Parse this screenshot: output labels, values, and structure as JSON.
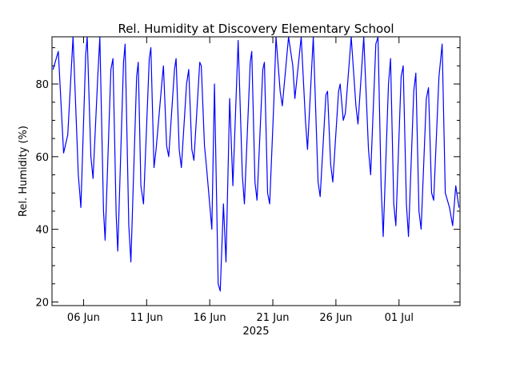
{
  "chart_data": {
    "type": "line",
    "title": "Rel. Humidity at Discovery Elementary School",
    "xlabel": "2025",
    "ylabel": "Rel. Humidity (%)",
    "xlim": [
      "2025-06-03T12:00",
      "2025-07-05T20:00"
    ],
    "ylim": [
      19,
      93
    ],
    "y_ticks": [
      20,
      40,
      60,
      80
    ],
    "x_ticks": [
      {
        "date": "2025-06-06",
        "label": "06 Jun"
      },
      {
        "date": "2025-06-11",
        "label": "11 Jun"
      },
      {
        "date": "2025-06-16",
        "label": "16 Jun"
      },
      {
        "date": "2025-06-21",
        "label": "21 Jun"
      },
      {
        "date": "2025-06-26",
        "label": "26 Jun"
      },
      {
        "date": "2025-07-01",
        "label": "01 Jul"
      }
    ],
    "grid": false,
    "series": [
      {
        "color": "#0000ff",
        "points": [
          [
            "2025-06-03T14:00",
            84
          ],
          [
            "2025-06-04T00:00",
            89
          ],
          [
            "2025-06-04T10:00",
            61
          ],
          [
            "2025-06-04T18:00",
            66
          ],
          [
            "2025-06-05T04:00",
            93
          ],
          [
            "2025-06-05T14:00",
            55
          ],
          [
            "2025-06-05T19:00",
            46
          ],
          [
            "2025-06-06T04:00",
            88
          ],
          [
            "2025-06-06T07:00",
            93
          ],
          [
            "2025-06-06T14:00",
            60
          ],
          [
            "2025-06-06T18:00",
            54
          ],
          [
            "2025-06-07T03:00",
            82
          ],
          [
            "2025-06-07T07:00",
            93
          ],
          [
            "2025-06-07T14:00",
            45
          ],
          [
            "2025-06-07T17:00",
            37
          ],
          [
            "2025-06-08T04:00",
            84
          ],
          [
            "2025-06-08T08:00",
            87
          ],
          [
            "2025-06-08T14:00",
            44
          ],
          [
            "2025-06-08T17:00",
            34
          ],
          [
            "2025-06-09T04:00",
            86
          ],
          [
            "2025-06-09T07:00",
            91
          ],
          [
            "2025-06-09T14:00",
            41
          ],
          [
            "2025-06-09T18:00",
            31
          ],
          [
            "2025-06-10T05:00",
            82
          ],
          [
            "2025-06-10T08:00",
            86
          ],
          [
            "2025-06-10T13:00",
            52
          ],
          [
            "2025-06-10T18:00",
            47
          ],
          [
            "2025-06-11T05:00",
            87
          ],
          [
            "2025-06-11T08:00",
            90
          ],
          [
            "2025-06-11T14:00",
            57
          ],
          [
            "2025-06-11T18:00",
            62
          ],
          [
            "2025-06-12T06:00",
            82
          ],
          [
            "2025-06-12T08:00",
            85
          ],
          [
            "2025-06-12T14:00",
            63
          ],
          [
            "2025-06-12T18:00",
            60
          ],
          [
            "2025-06-13T05:00",
            84
          ],
          [
            "2025-06-13T08:00",
            87
          ],
          [
            "2025-06-13T14:00",
            62
          ],
          [
            "2025-06-13T18:00",
            57
          ],
          [
            "2025-06-14T04:00",
            80
          ],
          [
            "2025-06-14T08:00",
            84
          ],
          [
            "2025-06-14T14:00",
            62
          ],
          [
            "2025-06-14T18:00",
            59
          ],
          [
            "2025-06-15T05:00",
            86
          ],
          [
            "2025-06-15T08:00",
            85
          ],
          [
            "2025-06-15T14:00",
            63
          ],
          [
            "2025-06-15T18:00",
            57
          ],
          [
            "2025-06-16T04:00",
            40
          ],
          [
            "2025-06-16T09:00",
            80
          ],
          [
            "2025-06-16T16:00",
            25
          ],
          [
            "2025-06-16T20:00",
            23
          ],
          [
            "2025-06-17T02:00",
            47
          ],
          [
            "2025-06-17T07:00",
            31
          ],
          [
            "2025-06-17T14:00",
            76
          ],
          [
            "2025-06-17T20:00",
            52
          ],
          [
            "2025-06-18T06:00",
            92
          ],
          [
            "2025-06-18T14:00",
            55
          ],
          [
            "2025-06-18T18:00",
            47
          ],
          [
            "2025-06-19T05:00",
            86
          ],
          [
            "2025-06-19T08:00",
            89
          ],
          [
            "2025-06-19T14:00",
            53
          ],
          [
            "2025-06-19T18:00",
            48
          ],
          [
            "2025-06-20T05:00",
            84
          ],
          [
            "2025-06-20T08:00",
            86
          ],
          [
            "2025-06-20T14:00",
            50
          ],
          [
            "2025-06-20T18:00",
            47
          ],
          [
            "2025-06-21T02:00",
            75
          ],
          [
            "2025-06-21T06:00",
            93
          ],
          [
            "2025-06-21T14:00",
            78
          ],
          [
            "2025-06-21T18:00",
            74
          ],
          [
            "2025-06-22T06:00",
            93
          ],
          [
            "2025-06-22T14:00",
            85
          ],
          [
            "2025-06-22T18:00",
            76
          ],
          [
            "2025-06-23T06:00",
            93
          ],
          [
            "2025-06-23T14:00",
            70
          ],
          [
            "2025-06-23T18:00",
            62
          ],
          [
            "2025-06-24T05:00",
            93
          ],
          [
            "2025-06-24T14:00",
            53
          ],
          [
            "2025-06-24T18:00",
            49
          ],
          [
            "2025-06-25T05:00",
            77
          ],
          [
            "2025-06-25T08:00",
            78
          ],
          [
            "2025-06-25T14:00",
            58
          ],
          [
            "2025-06-25T18:00",
            53
          ],
          [
            "2025-06-26T05:00",
            78
          ],
          [
            "2025-06-26T08:00",
            80
          ],
          [
            "2025-06-26T14:00",
            70
          ],
          [
            "2025-06-26T18:00",
            72
          ],
          [
            "2025-06-27T05:00",
            93
          ],
          [
            "2025-06-27T14:00",
            74
          ],
          [
            "2025-06-27T18:00",
            69
          ],
          [
            "2025-06-28T05:00",
            93
          ],
          [
            "2025-06-28T14:00",
            62
          ],
          [
            "2025-06-28T18:00",
            55
          ],
          [
            "2025-06-29T04:00",
            91
          ],
          [
            "2025-06-29T08:00",
            93
          ],
          [
            "2025-06-29T14:00",
            52
          ],
          [
            "2025-06-29T18:00",
            38
          ],
          [
            "2025-06-30T04:00",
            80
          ],
          [
            "2025-06-30T08:00",
            87
          ],
          [
            "2025-06-30T14:00",
            47
          ],
          [
            "2025-06-30T18:00",
            41
          ],
          [
            "2025-07-01T04:00",
            82
          ],
          [
            "2025-07-01T08:00",
            85
          ],
          [
            "2025-07-01T14:00",
            47
          ],
          [
            "2025-07-01T18:00",
            38
          ],
          [
            "2025-07-02T04:00",
            78
          ],
          [
            "2025-07-02T08:00",
            83
          ],
          [
            "2025-07-02T14:00",
            45
          ],
          [
            "2025-07-02T18:00",
            40
          ],
          [
            "2025-07-03T04:00",
            76
          ],
          [
            "2025-07-03T08:00",
            79
          ],
          [
            "2025-07-03T14:00",
            50
          ],
          [
            "2025-07-03T18:00",
            48
          ],
          [
            "2025-07-04T04:00",
            82
          ],
          [
            "2025-07-04T10:00",
            91
          ],
          [
            "2025-07-04T16:00",
            50
          ],
          [
            "2025-07-05T00:00",
            46
          ],
          [
            "2025-07-05T06:00",
            41
          ],
          [
            "2025-07-05T12:00",
            52
          ],
          [
            "2025-07-05T18:00",
            46
          ]
        ]
      }
    ]
  }
}
